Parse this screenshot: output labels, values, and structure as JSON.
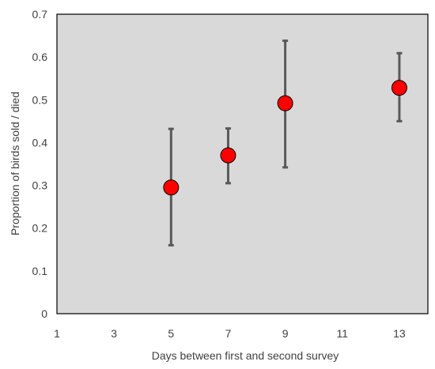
{
  "chart_data": {
    "type": "scatter",
    "title": "",
    "xlabel": "Days between first and second survey",
    "ylabel": "Proportion of birds sold / died",
    "xlim": [
      1,
      14
    ],
    "ylim": [
      0,
      0.7
    ],
    "x_ticks": [
      "1",
      "3",
      "5",
      "7",
      "9",
      "11",
      "13"
    ],
    "y_ticks": [
      "0",
      "0.1",
      "0.2",
      "0.3",
      "0.4",
      "0.5",
      "0.6",
      "0.7"
    ],
    "grid": false,
    "plot_background": "#d9d9d9",
    "marker_color": "#ff0000",
    "errorbar_color": "#595959",
    "series": [
      {
        "points": [
          {
            "x": 5,
            "y": 0.295,
            "y_low": 0.16,
            "y_high": 0.432
          },
          {
            "x": 7,
            "y": 0.37,
            "y_low": 0.305,
            "y_high": 0.433
          },
          {
            "x": 9,
            "y": 0.492,
            "y_low": 0.342,
            "y_high": 0.638
          },
          {
            "x": 13,
            "y": 0.528,
            "y_low": 0.45,
            "y_high": 0.609
          }
        ]
      }
    ]
  }
}
